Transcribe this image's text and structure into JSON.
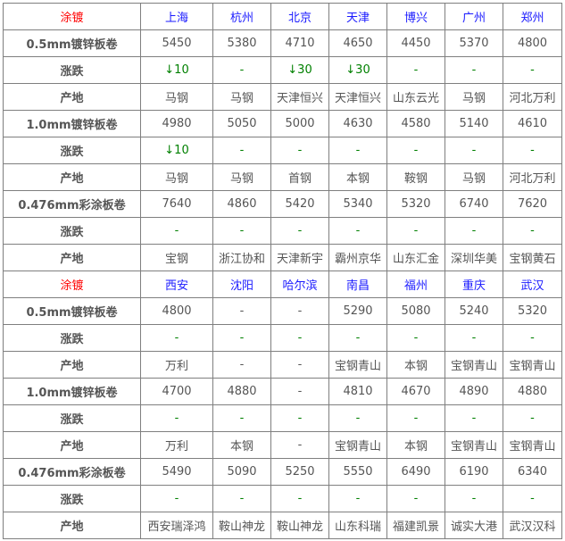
{
  "colors": {
    "header_label": "#ff0000",
    "city": "#1a1aff",
    "change": "#008000",
    "text": "#555555"
  },
  "rows": [
    {
      "type": "hdr",
      "label": "涂镀",
      "cells": [
        "上海",
        "杭州",
        "北京",
        "天津",
        "博兴",
        "广州",
        "郑州"
      ]
    },
    {
      "type": "prod",
      "label": "0.5mm镀锌板卷",
      "cells": [
        "5450",
        "5380",
        "4710",
        "4650",
        "4450",
        "5370",
        "4800"
      ]
    },
    {
      "type": "chg",
      "label": "涨跌",
      "cells": [
        "↓10",
        "-",
        "↓30",
        "↓30",
        "-",
        "-",
        "-"
      ]
    },
    {
      "type": "orig",
      "label": "产地",
      "cells": [
        "马钢",
        "马钢",
        "天津恒兴",
        "天津恒兴",
        "山东云光",
        "马钢",
        "河北万利"
      ]
    },
    {
      "type": "prod",
      "label": "1.0mm镀锌板卷",
      "cells": [
        "4980",
        "5050",
        "5000",
        "4630",
        "4580",
        "5140",
        "4610"
      ]
    },
    {
      "type": "chg",
      "label": "涨跌",
      "cells": [
        "↓10",
        "-",
        "-",
        "-",
        "-",
        "-",
        "-"
      ]
    },
    {
      "type": "orig",
      "label": "产地",
      "cells": [
        "马钢",
        "马钢",
        "首钢",
        "本钢",
        "鞍钢",
        "马钢",
        "河北万利"
      ]
    },
    {
      "type": "prod",
      "label": "0.476mm彩涂板卷",
      "cells": [
        "7640",
        "4860",
        "5420",
        "5340",
        "5320",
        "6740",
        "7620"
      ]
    },
    {
      "type": "chg",
      "label": "涨跌",
      "cells": [
        "-",
        "-",
        "-",
        "-",
        "-",
        "-",
        "-"
      ]
    },
    {
      "type": "orig",
      "label": "产地",
      "cells": [
        "宝钢",
        "浙江协和",
        "天津新宇",
        "霸州京华",
        "山东汇金",
        "深圳华美",
        "宝钢黄石"
      ]
    },
    {
      "type": "hdr",
      "label": "涂镀",
      "cells": [
        "西安",
        "沈阳",
        "哈尔滨",
        "南昌",
        "福州",
        "重庆",
        "武汉"
      ]
    },
    {
      "type": "prod",
      "label": "0.5mm镀锌板卷",
      "cells": [
        "4800",
        "-",
        "-",
        "5290",
        "5080",
        "5240",
        "5320"
      ]
    },
    {
      "type": "chg",
      "label": "涨跌",
      "cells": [
        "-",
        "-",
        "-",
        "-",
        "-",
        "-",
        "-"
      ]
    },
    {
      "type": "orig",
      "label": "产地",
      "cells": [
        "万利",
        "-",
        "-",
        "宝钢青山",
        "本钢",
        "宝钢青山",
        "宝钢青山"
      ]
    },
    {
      "type": "prod",
      "label": "1.0mm镀锌板卷",
      "cells": [
        "4700",
        "4880",
        "-",
        "4810",
        "4670",
        "4890",
        "4880"
      ]
    },
    {
      "type": "chg",
      "label": "涨跌",
      "cells": [
        "-",
        "-",
        "-",
        "-",
        "-",
        "-",
        "-"
      ]
    },
    {
      "type": "orig",
      "label": "产地",
      "cells": [
        "万利",
        "本钢",
        "-",
        "宝钢青山",
        "本钢",
        "宝钢青山",
        "宝钢青山"
      ]
    },
    {
      "type": "prod",
      "label": "0.476mm彩涂板卷",
      "cells": [
        "5490",
        "5090",
        "5250",
        "5550",
        "6490",
        "6190",
        "6340"
      ]
    },
    {
      "type": "chg",
      "label": "涨跌",
      "cells": [
        "-",
        "-",
        "-",
        "-",
        "-",
        "-",
        "-"
      ]
    },
    {
      "type": "orig",
      "label": "产地",
      "cells": [
        "西安瑞泽鸿",
        "鞍山神龙",
        "鞍山神龙",
        "山东科瑞",
        "福建凯景",
        "诚实大港",
        "武汉汉科"
      ]
    }
  ]
}
